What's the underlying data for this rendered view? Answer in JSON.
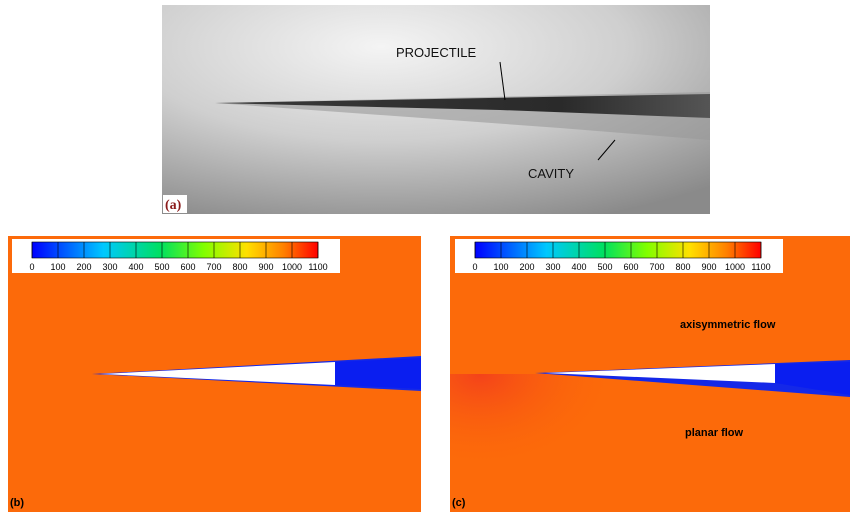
{
  "panels": [
    {
      "label": "(a)",
      "annotations": [
        "PROJECTILE",
        "CAVITY"
      ]
    },
    {
      "label": "(b)",
      "colorbar": {
        "ticks": [
          0,
          100,
          200,
          300,
          400,
          500,
          600,
          700,
          800,
          900,
          1000,
          1100
        ]
      }
    },
    {
      "label": "(c)",
      "colorbar": {
        "ticks": [
          0,
          100,
          200,
          300,
          400,
          500,
          600,
          700,
          800,
          900,
          1000,
          1100
        ]
      },
      "annotations": [
        "axisymmetric flow",
        "planar flow"
      ]
    }
  ]
}
